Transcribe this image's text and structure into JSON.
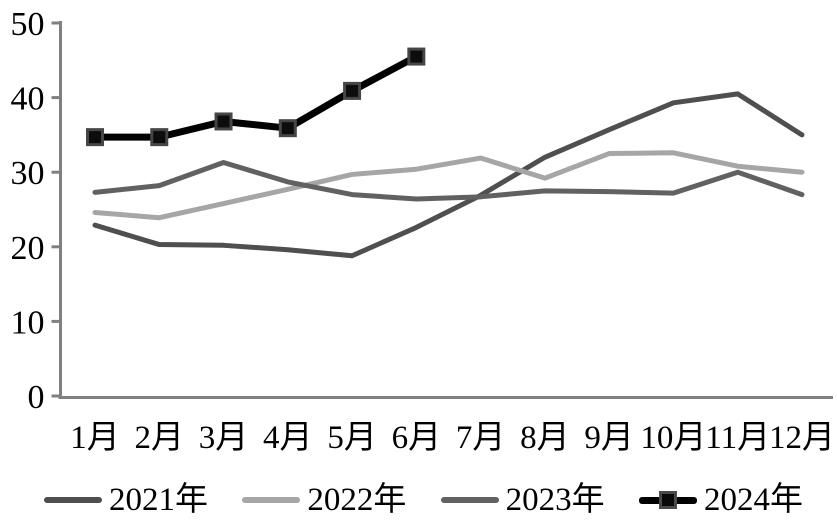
{
  "chart_data": {
    "type": "line",
    "title": "",
    "xlabel": "",
    "ylabel": "",
    "categories": [
      "1月",
      "2月",
      "3月",
      "4月",
      "5月",
      "6月",
      "7月",
      "8月",
      "9月",
      "10月",
      "11月",
      "12月"
    ],
    "series": [
      {
        "name": "2021年",
        "color": "#4f4f4f",
        "width": 5,
        "marker": "none",
        "values": [
          22.9,
          20.3,
          20.2,
          19.6,
          18.8,
          22.6,
          26.9,
          32.0,
          35.7,
          39.3,
          40.5,
          35.0
        ]
      },
      {
        "name": "2022年",
        "color": "#a6a6a6",
        "width": 5,
        "marker": "none",
        "values": [
          24.6,
          23.9,
          25.8,
          27.7,
          29.7,
          30.4,
          31.9,
          29.2,
          32.5,
          32.6,
          30.8,
          30.0
        ]
      },
      {
        "name": "2023年",
        "color": "#616161",
        "width": 5,
        "marker": "none",
        "values": [
          27.3,
          28.2,
          31.3,
          28.7,
          27.0,
          26.4,
          26.7,
          27.5,
          27.4,
          27.2,
          30.0,
          27.0
        ]
      },
      {
        "name": "2024年",
        "color": "#000000",
        "width": 7,
        "marker": "square",
        "values": [
          34.7,
          34.7,
          36.8,
          35.9,
          40.9,
          45.5
        ]
      }
    ],
    "marker_style": {
      "size": 15,
      "fill": "#0d0d0d",
      "border": "#464646",
      "border_width": 3
    },
    "ylim": [
      0,
      50
    ],
    "y_ticks": [
      0,
      10,
      20,
      30,
      40,
      50
    ],
    "grid": false,
    "axis_color": "#808080",
    "legend_position": "bottom"
  }
}
